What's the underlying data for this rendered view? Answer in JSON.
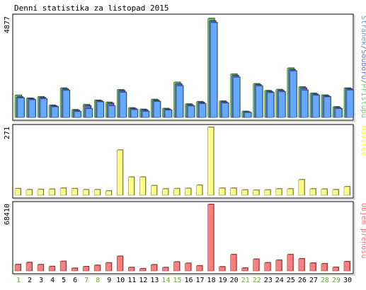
{
  "chart_data": [
    {
      "type": "bar",
      "title": "Denní statistika za listopad 2015",
      "categories": [
        "1",
        "2",
        "3",
        "4",
        "5",
        "6",
        "7",
        "8",
        "9",
        "10",
        "11",
        "12",
        "13",
        "14",
        "15",
        "16",
        "17",
        "18",
        "19",
        "20",
        "21",
        "22",
        "23",
        "24",
        "25",
        "26",
        "27",
        "28",
        "29",
        "30"
      ],
      "weekend_days": [
        "1",
        "7",
        "8",
        "14",
        "15",
        "21",
        "22",
        "28",
        "29"
      ],
      "ymax_label": "4877",
      "ylim": [
        0,
        4877
      ],
      "legend_placement": "right (vertical)",
      "legend": [
        {
          "text": "Stránek",
          "color": "#6699cc"
        },
        {
          "text": "/",
          "color": "#666666"
        },
        {
          "text": "Souborů",
          "color": "#6666dd"
        },
        {
          "text": "/",
          "color": "#666666"
        },
        {
          "text": "Přístupů",
          "color": "#66cc66"
        }
      ],
      "series": [
        {
          "name": "Přístupů",
          "color": "#66cc66",
          "values": [
            1070,
            930,
            1000,
            590,
            1420,
            370,
            620,
            830,
            730,
            1340,
            460,
            390,
            870,
            430,
            1700,
            650,
            760,
            4800,
            790,
            2100,
            290,
            1630,
            1300,
            1350,
            2390,
            1480,
            1170,
            1080,
            510,
            1420
          ]
        },
        {
          "name": "Souborů",
          "color": "#6666cc",
          "values": [
            990,
            900,
            950,
            550,
            1370,
            330,
            560,
            800,
            680,
            1290,
            420,
            350,
            820,
            390,
            1620,
            600,
            720,
            4680,
            740,
            2030,
            260,
            1580,
            1250,
            1300,
            2320,
            1420,
            1120,
            1040,
            470,
            1380
          ]
        },
        {
          "name": "Stránek",
          "color": "#66aaff",
          "values": [
            940,
            850,
            900,
            510,
            1310,
            280,
            420,
            750,
            560,
            1210,
            370,
            290,
            770,
            350,
            1530,
            550,
            660,
            4600,
            690,
            1950,
            230,
            1520,
            1200,
            1240,
            2250,
            1320,
            1070,
            990,
            420,
            1320
          ]
        }
      ]
    },
    {
      "type": "bar",
      "ymax_label": "271",
      "ylim": [
        0,
        271
      ],
      "legend": [
        {
          "text": "Návštěv",
          "color": "#ffff00"
        }
      ],
      "series": [
        {
          "name": "Návštěv",
          "color": "#ffff88",
          "values": [
            26,
            22,
            23,
            24,
            28,
            26,
            22,
            22,
            17,
            180,
            72,
            72,
            38,
            25,
            26,
            27,
            40,
            271,
            28,
            28,
            21,
            20,
            21,
            25,
            25,
            62,
            25,
            24,
            22,
            34
          ]
        }
      ]
    },
    {
      "type": "bar",
      "ymax_label": "68410",
      "ylim": [
        0,
        68410
      ],
      "legend": [
        {
          "text": "Objem přenosu",
          "color": "#ff6666"
        }
      ],
      "series": [
        {
          "name": "Objem přenosu",
          "color": "#ff7f7f",
          "values": [
            6500,
            8600,
            6400,
            4500,
            9800,
            2700,
            4400,
            5700,
            8200,
            15000,
            3500,
            2300,
            6300,
            3400,
            9200,
            7800,
            5200,
            68410,
            4200,
            16800,
            2900,
            12000,
            8300,
            11000,
            16800,
            12500,
            8000,
            7400,
            3700,
            9500
          ]
        }
      ]
    }
  ]
}
